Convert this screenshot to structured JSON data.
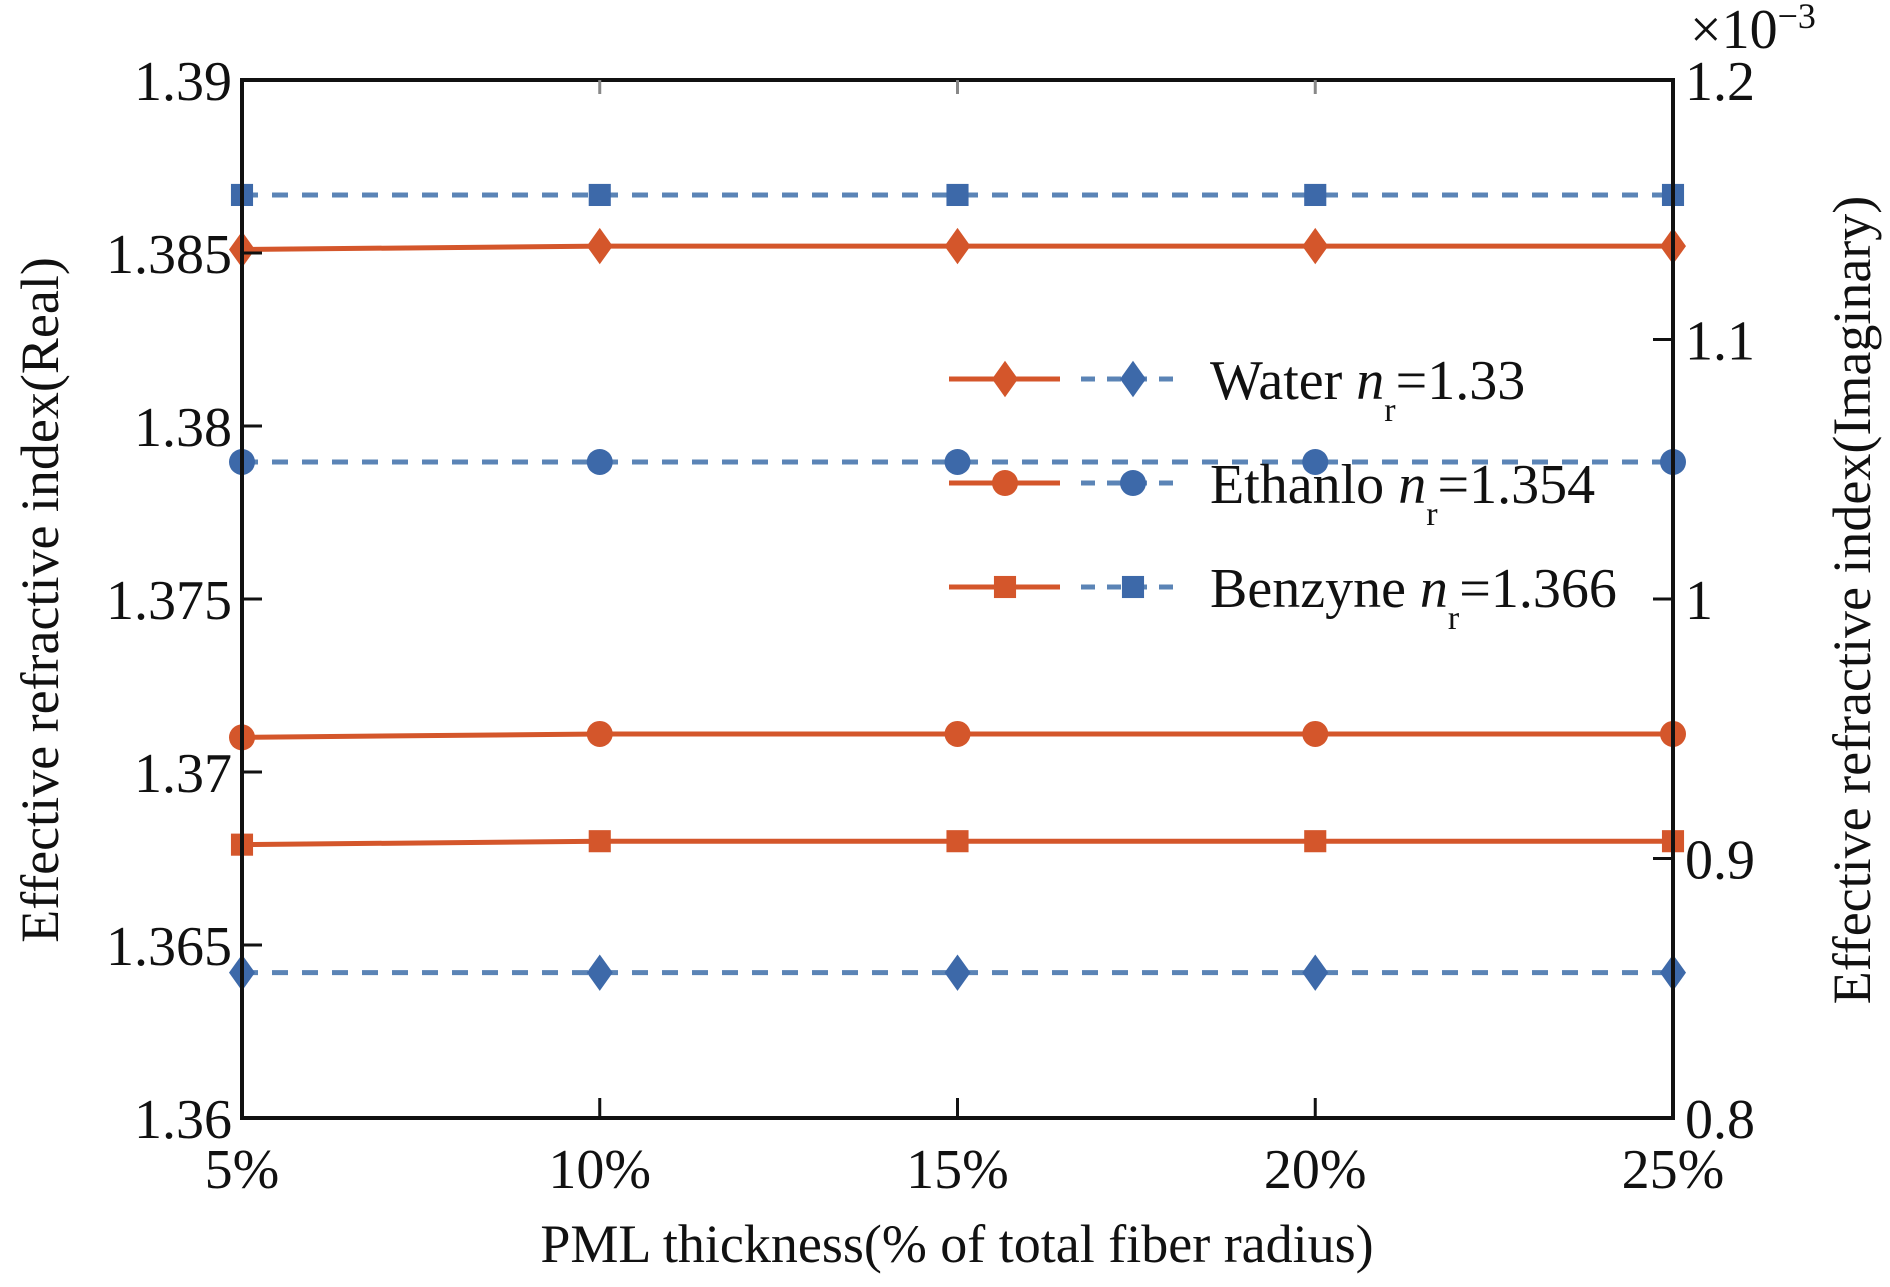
{
  "chart_data": {
    "type": "line",
    "title": "",
    "xlabel": "PML thickness(% of total fiber radius)",
    "ylabel_left": "Effective refractive index(Real)",
    "ylabel_right": "Effective refractive index(Imaginary)",
    "right_axis_multiplier": "×10",
    "right_axis_exponent": "−3",
    "x": [
      "5%",
      "10%",
      "15%",
      "20%",
      "25%"
    ],
    "ylim_left": [
      1.36,
      1.39
    ],
    "yticks_left": [
      "1.36",
      "1.365",
      "1.37",
      "1.375",
      "1.38",
      "1.385",
      "1.39"
    ],
    "yticks_left_values": [
      1.36,
      1.365,
      1.37,
      1.375,
      1.38,
      1.385,
      1.39
    ],
    "ylim_right": [
      0.8,
      1.2
    ],
    "yticks_right": [
      "0.8",
      "0.9",
      "1",
      "1.1",
      "1.2"
    ],
    "yticks_right_values": [
      0.8,
      0.9,
      1.0,
      1.1,
      1.2
    ],
    "grid": false,
    "legend_position": "upper-right",
    "colors": {
      "real": "#d4562b",
      "imag": "#3d69a9",
      "imag_line": "#5b84b6"
    },
    "series": [
      {
        "name": "Water real",
        "axis": "left",
        "marker": "diamond",
        "style": "solid",
        "color_key": "real",
        "values": [
          1.3851,
          1.3852,
          1.3852,
          1.3852,
          1.3852
        ]
      },
      {
        "name": "Water imaginary",
        "axis": "right",
        "marker": "diamond",
        "style": "dashed",
        "color_key": "imag",
        "values": [
          0.856,
          0.856,
          0.856,
          0.856,
          0.856
        ]
      },
      {
        "name": "Ethanlo real",
        "axis": "left",
        "marker": "circle",
        "style": "solid",
        "color_key": "real",
        "values": [
          1.371,
          1.3711,
          1.3711,
          1.3711,
          1.3711
        ]
      },
      {
        "name": "Ethanlo imaginary",
        "axis": "right",
        "marker": "circle",
        "style": "dashed",
        "color_key": "imag",
        "values": [
          1.0528,
          1.0528,
          1.0528,
          1.0528,
          1.0528
        ]
      },
      {
        "name": "Benzyne real",
        "axis": "left",
        "marker": "square",
        "style": "solid",
        "color_key": "real",
        "values": [
          1.3679,
          1.368,
          1.368,
          1.368,
          1.368
        ]
      },
      {
        "name": "Benzyne imaginary",
        "axis": "right",
        "marker": "square",
        "style": "dashed",
        "color_key": "imag",
        "values": [
          1.1557,
          1.1557,
          1.1557,
          1.1557,
          1.1557
        ]
      }
    ],
    "legend": [
      {
        "marker": "diamond",
        "label": "Water ",
        "var": "n",
        "sub": "r",
        "value": "=1.33"
      },
      {
        "marker": "circle",
        "label": "Ethanlo ",
        "var": "n",
        "sub": "r",
        "value": "=1.354"
      },
      {
        "marker": "square",
        "label": "Benzyne ",
        "var": "n",
        "sub": "r",
        "value": "=1.366"
      }
    ]
  }
}
